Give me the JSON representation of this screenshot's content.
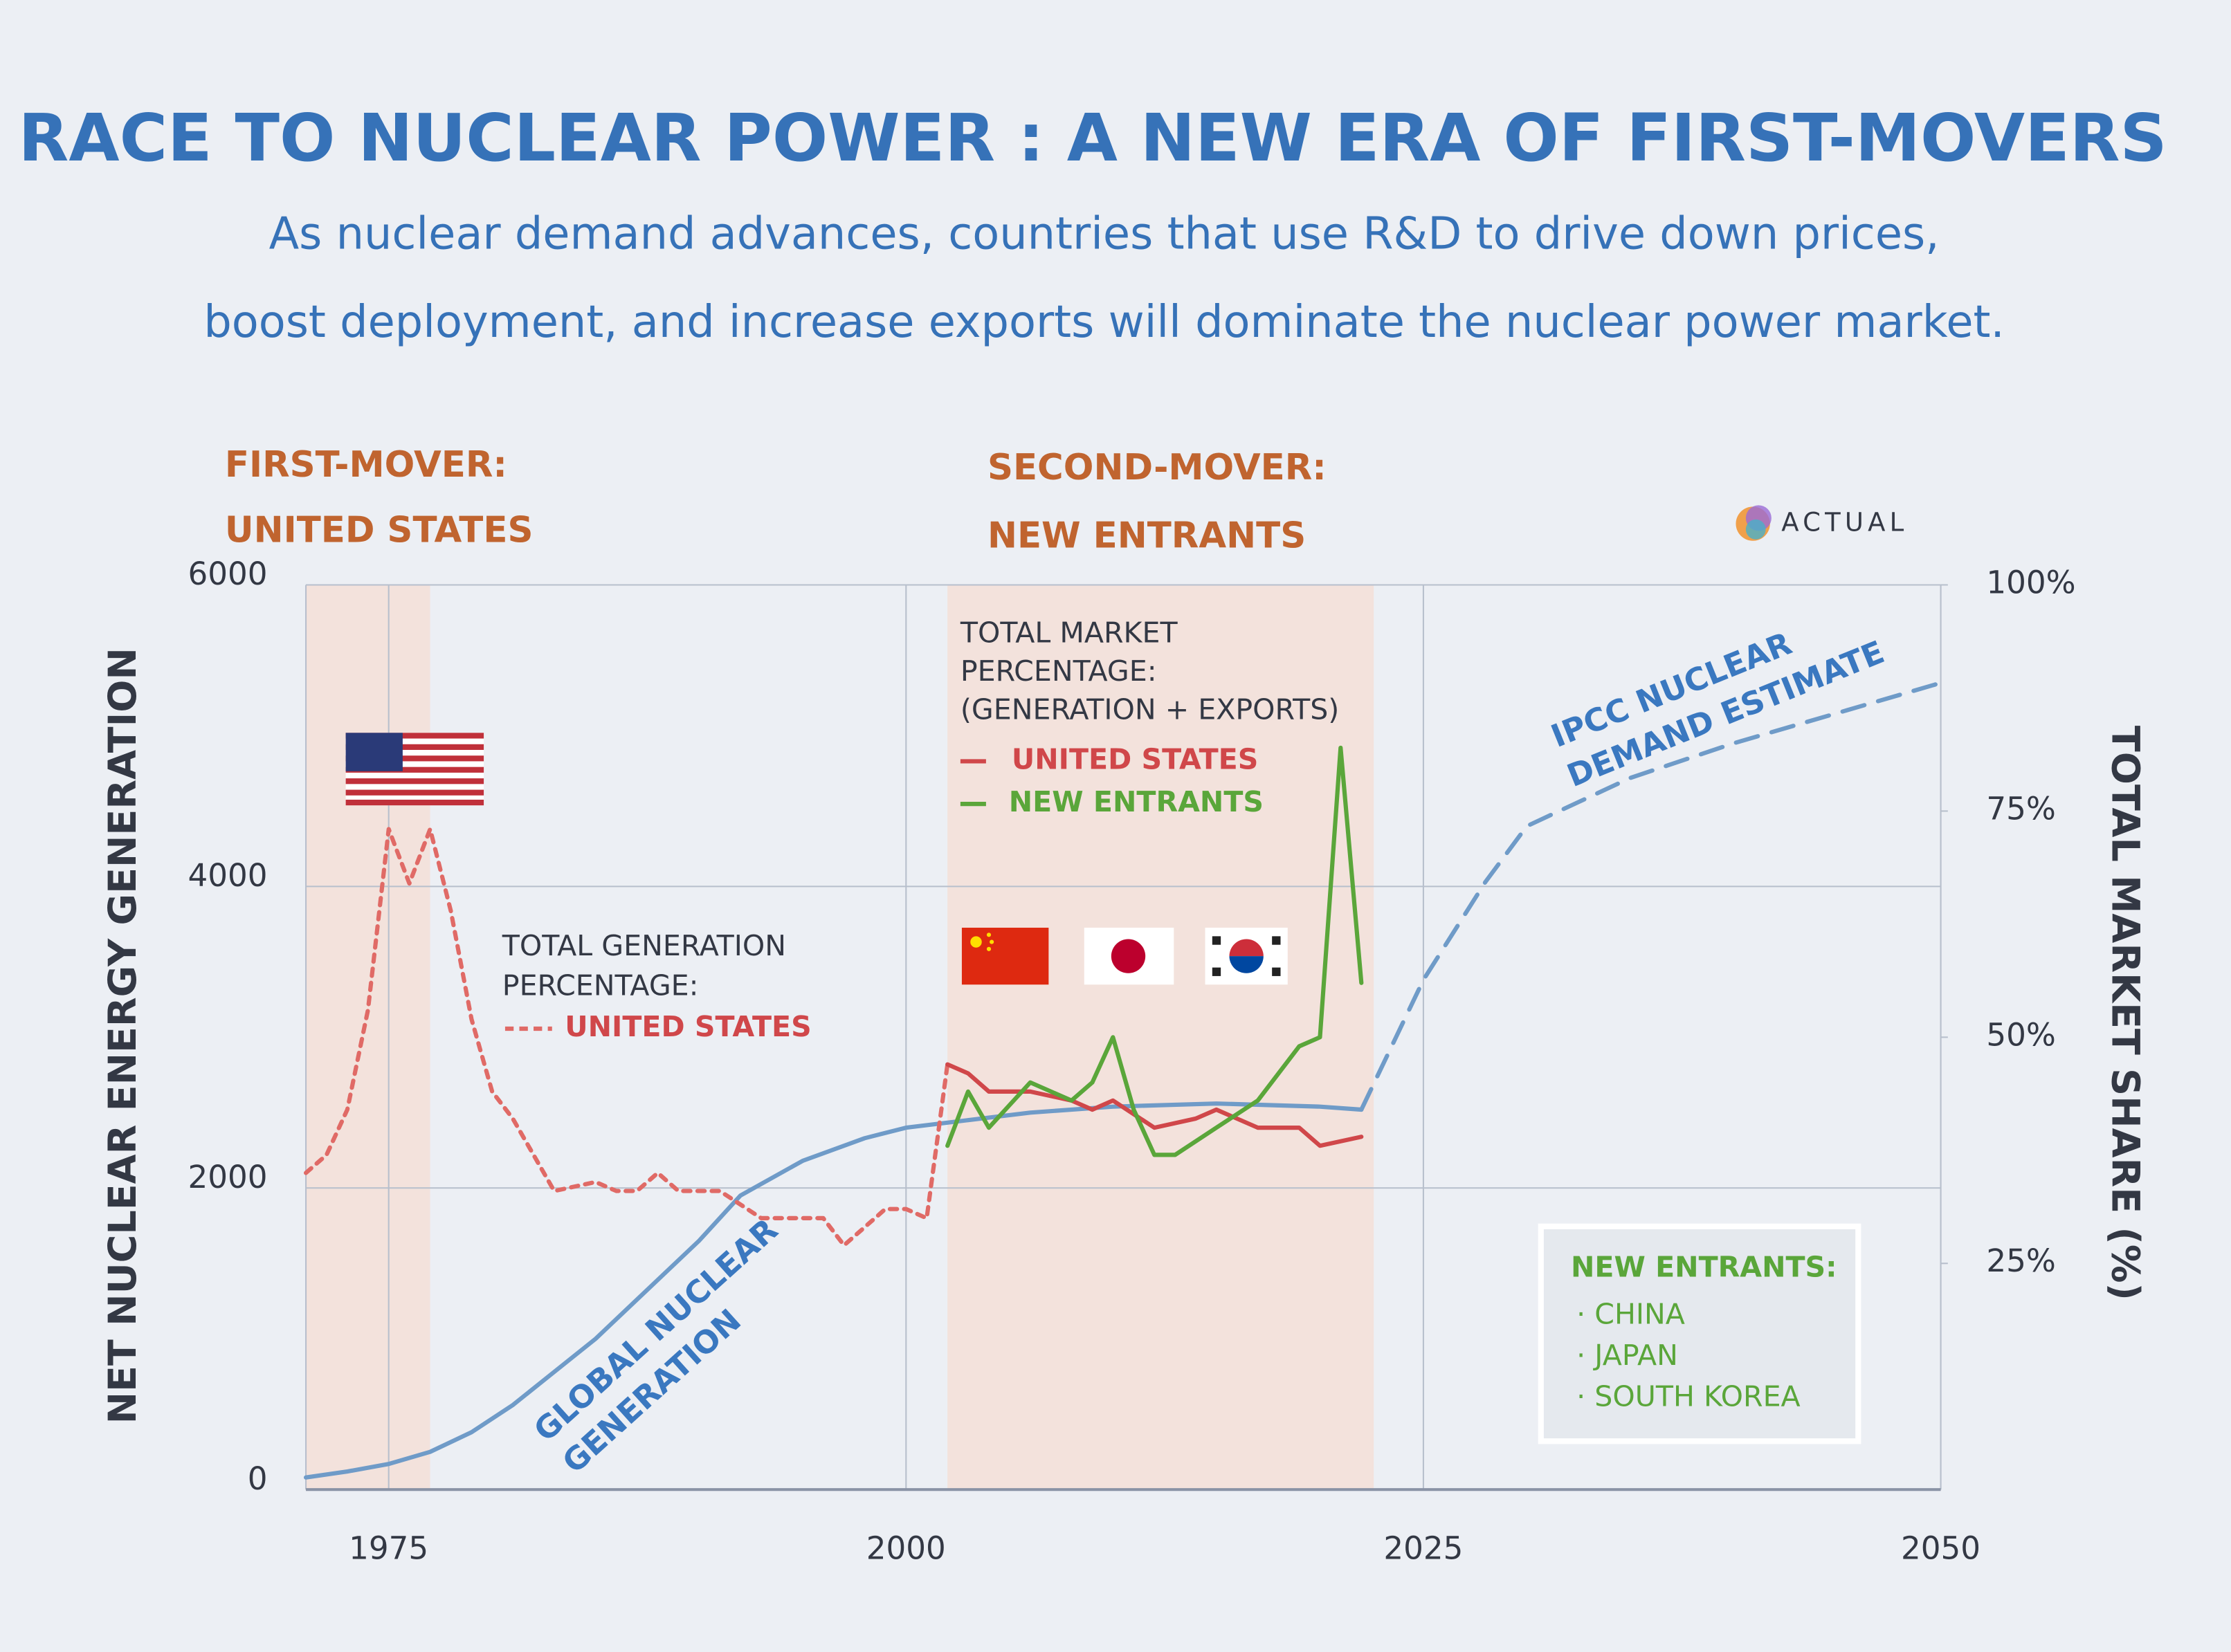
{
  "chart_data": {
    "type": "line",
    "title": "RACE TO NUCLEAR POWER : A NEW ERA OF FIRST-MOVERS",
    "subtitle": "As nuclear demand advances, countries that use R&D to drive down prices,\nboost deployment, and increase exports will dominate the nuclear power market.",
    "ylabel": "NET NUCLEAR ENERGY GENERATION",
    "y2label": "TOTAL MARKET SHARE (%)",
    "xlim": [
      1971,
      2050
    ],
    "xticks": [
      1975,
      2000,
      2025,
      2050
    ],
    "ylim": [
      0,
      6000
    ],
    "yticks": [
      0,
      2000,
      4000,
      6000
    ],
    "y2lim": [
      0,
      100
    ],
    "y2ticks": [
      {
        "value": 25,
        "label": "25%"
      },
      {
        "value": 50,
        "label": "50%"
      },
      {
        "value": 75,
        "label": "75%"
      },
      {
        "value": 100,
        "label": "100%"
      }
    ],
    "grid": true,
    "shaded_spans": [
      [
        1971,
        1977
      ],
      [
        2002,
        2022.6
      ]
    ],
    "shade_color": "#f3e2dc",
    "series": [
      {
        "name": "GLOBAL NUCLEAR\nGENERATION",
        "color": "#6f9bc8",
        "dashed": false,
        "axis": "y",
        "x": [
          1971,
          1973,
          1975,
          1977,
          1979,
          1981,
          1983,
          1985,
          1987,
          1990,
          1992,
          1995,
          1998,
          2000,
          2003,
          2006,
          2010,
          2015,
          2020,
          2022
        ],
        "values": [
          80,
          120,
          170,
          250,
          380,
          560,
          780,
          1000,
          1260,
          1650,
          1950,
          2180,
          2330,
          2400,
          2450,
          2500,
          2540,
          2560,
          2540,
          2520
        ]
      },
      {
        "name": "IPCC NUCLEAR\nDEMAND ESTIMATE",
        "color": "#6f9bc8",
        "dashed": true,
        "axis": "y",
        "x": [
          2022,
          2025,
          2028,
          2030,
          2035,
          2040,
          2045,
          2050
        ],
        "values": [
          2520,
          3380,
          4030,
          4400,
          4720,
          4950,
          5150,
          5350
        ]
      },
      {
        "name": "UNITED STATES",
        "color": "#e06a66",
        "dashed": true,
        "axis": "y2",
        "x": [
          1971,
          1972,
          1973,
          1974,
          1975,
          1976,
          1977,
          1978,
          1979,
          1980,
          1981,
          1983,
          1985,
          1986,
          1987,
          1988,
          1989,
          1991,
          1993,
          1995,
          1996,
          1997,
          1999,
          2000,
          2001,
          2002
        ],
        "values": [
          35,
          37,
          42,
          53,
          73,
          67,
          73,
          64,
          52,
          44,
          41,
          33,
          34,
          33,
          33,
          35,
          33,
          33,
          30,
          30,
          30,
          27,
          31,
          31,
          30,
          47
        ]
      },
      {
        "name": "UNITED STATES",
        "color": "#d0474a",
        "dashed": false,
        "axis": "y2",
        "x": [
          2002,
          2003,
          2004,
          2006,
          2008,
          2009,
          2010,
          2012,
          2014,
          2015,
          2017,
          2019,
          2020,
          2022
        ],
        "values": [
          47,
          46,
          44,
          44,
          43,
          42,
          43,
          40,
          41,
          42,
          40,
          40,
          38,
          39
        ]
      },
      {
        "name": "NEW ENTRANTS",
        "color": "#5aa63a",
        "dashed": false,
        "axis": "y2",
        "x": [
          2002,
          2003,
          2004,
          2006,
          2008,
          2009,
          2010,
          2011,
          2012,
          2013,
          2015,
          2017,
          2019,
          2020,
          2021,
          2022
        ],
        "values": [
          38,
          44,
          40,
          45,
          43,
          45,
          50,
          42,
          37,
          37,
          40,
          43,
          49,
          50,
          82,
          56
        ]
      }
    ],
    "annotations": {
      "first_mover": "FIRST-MOVER:\nUNITED STATES",
      "second_mover": "SECOND-MOVER:\nNEW ENTRANTS",
      "market_legend_title": "TOTAL MARKET\nPERCENTAGE:\n(GENERATION + EXPORTS)",
      "generation_legend_title": "TOTAL GENERATION\nPERCENTAGE:",
      "entrants_box": {
        "title": "NEW ENTRANTS:",
        "items": [
          "· CHINA",
          "· JAPAN",
          "· SOUTH KOREA"
        ]
      },
      "logo": "ACTUAL"
    }
  }
}
